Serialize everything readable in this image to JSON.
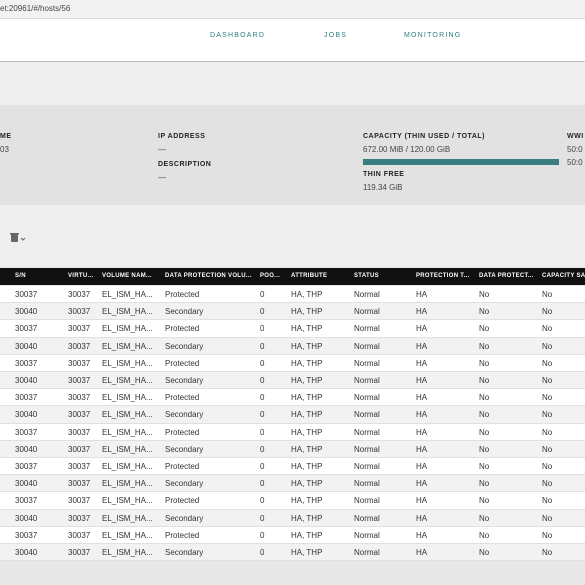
{
  "url": "et:20961/#/hosts/56",
  "nav": [
    "DASHBOARD",
    "JOBS",
    "MONITORING"
  ],
  "summary": {
    "name_label": "ME",
    "name_value": "03",
    "ip_label": "IP ADDRESS",
    "ip_value": "—",
    "desc_label": "DESCRIPTION",
    "desc_value": "—",
    "capacity_label": "CAPACITY (THIN USED / TOTAL)",
    "capacity_value": "672.00 MiB / 120.00 GiB",
    "thin_free_label": "THIN FREE",
    "thin_free_value": "119.34 GiB",
    "wwn_label": "WWI",
    "wwn_values": [
      "50:0",
      "50:0"
    ]
  },
  "table": {
    "headers": [
      "S/N",
      "VIRTU...",
      "VOLUME NAM...",
      "DATA PROTECTION VOLU...",
      "POO...",
      "ATTRIBUTE",
      "STATUS",
      "PROTECTION T...",
      "DATA PROTECT...",
      "CAPACITY SA..."
    ],
    "rows": [
      [
        "30037",
        "30037",
        "EL_ISM_HA...",
        "Protected",
        "0",
        "HA, THP",
        "Normal",
        "HA",
        "No",
        "No"
      ],
      [
        "30040",
        "30037",
        "EL_ISM_HA...",
        "Secondary",
        "0",
        "HA, THP",
        "Normal",
        "HA",
        "No",
        "No"
      ],
      [
        "30037",
        "30037",
        "EL_ISM_HA...",
        "Protected",
        "0",
        "HA, THP",
        "Normal",
        "HA",
        "No",
        "No"
      ],
      [
        "30040",
        "30037",
        "EL_ISM_HA...",
        "Secondary",
        "0",
        "HA, THP",
        "Normal",
        "HA",
        "No",
        "No"
      ],
      [
        "30037",
        "30037",
        "EL_ISM_HA...",
        "Protected",
        "0",
        "HA, THP",
        "Normal",
        "HA",
        "No",
        "No"
      ],
      [
        "30040",
        "30037",
        "EL_ISM_HA...",
        "Secondary",
        "0",
        "HA, THP",
        "Normal",
        "HA",
        "No",
        "No"
      ],
      [
        "30037",
        "30037",
        "EL_ISM_HA...",
        "Protected",
        "0",
        "HA, THP",
        "Normal",
        "HA",
        "No",
        "No"
      ],
      [
        "30040",
        "30037",
        "EL_ISM_HA...",
        "Secondary",
        "0",
        "HA, THP",
        "Normal",
        "HA",
        "No",
        "No"
      ],
      [
        "30037",
        "30037",
        "EL_ISM_HA...",
        "Protected",
        "0",
        "HA, THP",
        "Normal",
        "HA",
        "No",
        "No"
      ],
      [
        "30040",
        "30037",
        "EL_ISM_HA...",
        "Secondary",
        "0",
        "HA, THP",
        "Normal",
        "HA",
        "No",
        "No"
      ],
      [
        "30037",
        "30037",
        "EL_ISM_HA...",
        "Protected",
        "0",
        "HA, THP",
        "Normal",
        "HA",
        "No",
        "No"
      ],
      [
        "30040",
        "30037",
        "EL_ISM_HA...",
        "Secondary",
        "0",
        "HA, THP",
        "Normal",
        "HA",
        "No",
        "No"
      ],
      [
        "30037",
        "30037",
        "EL_ISM_HA...",
        "Protected",
        "0",
        "HA, THP",
        "Normal",
        "HA",
        "No",
        "No"
      ],
      [
        "30040",
        "30037",
        "EL_ISM_HA...",
        "Secondary",
        "0",
        "HA, THP",
        "Normal",
        "HA",
        "No",
        "No"
      ],
      [
        "30037",
        "30037",
        "EL_ISM_HA...",
        "Protected",
        "0",
        "HA, THP",
        "Normal",
        "HA",
        "No",
        "No"
      ],
      [
        "30040",
        "30037",
        "EL_ISM_HA...",
        "Secondary",
        "0",
        "HA, THP",
        "Normal",
        "HA",
        "No",
        "No"
      ]
    ]
  }
}
